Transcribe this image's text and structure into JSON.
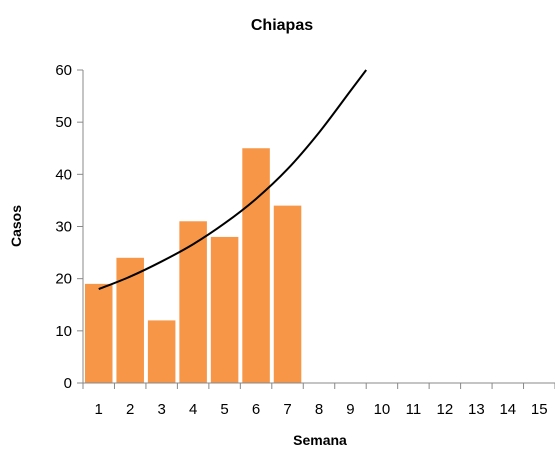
{
  "chart_data": {
    "type": "bar",
    "title": "Chiapas",
    "xlabel": "Semana",
    "ylabel": "Casos",
    "categories": [
      "1",
      "2",
      "3",
      "4",
      "5",
      "6",
      "7",
      "8",
      "9",
      "10",
      "11",
      "12",
      "13",
      "14",
      "15"
    ],
    "values": [
      19,
      24,
      12,
      31,
      28,
      45,
      34,
      null,
      null,
      null,
      null,
      null,
      null,
      null,
      null
    ],
    "ylim": [
      0,
      60
    ],
    "yticks": [
      0,
      10,
      20,
      30,
      40,
      50,
      60
    ],
    "grid": false,
    "legend": "none",
    "bar_color": "#f79646",
    "trendline": {
      "type": "exponential",
      "color": "#000000",
      "points": [
        {
          "x": 1,
          "y": 18
        },
        {
          "x": 2,
          "y": 20.4
        },
        {
          "x": 3,
          "y": 23.3
        },
        {
          "x": 4,
          "y": 26.6
        },
        {
          "x": 5,
          "y": 30.6
        },
        {
          "x": 6,
          "y": 35.3
        },
        {
          "x": 7,
          "y": 41.0
        },
        {
          "x": 8,
          "y": 48.0
        },
        {
          "x": 9,
          "y": 56.0
        },
        {
          "x": 9.5,
          "y": 60
        }
      ]
    }
  }
}
